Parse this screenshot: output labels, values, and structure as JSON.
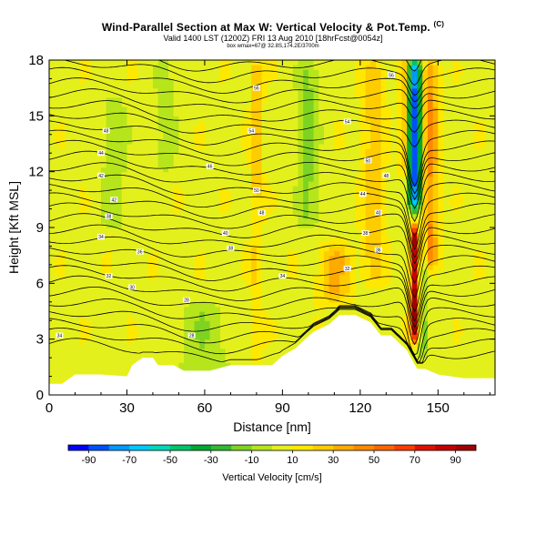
{
  "header": {
    "title": "Wind-Parallel Section at Max W: Vertical Velocity & Pot.Temp.",
    "title_mark": "(C)",
    "subtitle": "Valid 1400 LST (1200Z) FRI 13 Aug 2010 [18hrFcst@0054z]",
    "subtitle2": "box wmax=67@ 32.8S,174.2E/3700m"
  },
  "chart_data": {
    "type": "heatmap",
    "xlabel": "Distance [nm]",
    "ylabel": "Height [Kft MSL]",
    "xlim": [
      0,
      172
    ],
    "ylim": [
      0,
      18
    ],
    "x_ticks": [
      "0",
      "30",
      "60",
      "90",
      "120",
      "150"
    ],
    "x_tick_values": [
      0,
      30,
      60,
      90,
      120,
      150
    ],
    "y_ticks": [
      "0",
      "3",
      "6",
      "9",
      "12",
      "15",
      "18"
    ],
    "y_tick_values": [
      0,
      3,
      6,
      9,
      12,
      15,
      18
    ],
    "terrain": [
      [
        0,
        0.6
      ],
      [
        5,
        0.6
      ],
      [
        10,
        1.1
      ],
      [
        20,
        1.1
      ],
      [
        30,
        1.0
      ],
      [
        32,
        1.6
      ],
      [
        36,
        2.0
      ],
      [
        40,
        2.0
      ],
      [
        42,
        1.6
      ],
      [
        48,
        1.6
      ],
      [
        52,
        1.3
      ],
      [
        62,
        1.3
      ],
      [
        70,
        1.6
      ],
      [
        80,
        1.6
      ],
      [
        86,
        1.6
      ],
      [
        90,
        2.1
      ],
      [
        95,
        2.5
      ],
      [
        98,
        2.9
      ],
      [
        102,
        3.4
      ],
      [
        108,
        3.8
      ],
      [
        112,
        4.3
      ],
      [
        118,
        4.3
      ],
      [
        124,
        3.9
      ],
      [
        128,
        3.2
      ],
      [
        132,
        3.2
      ],
      [
        138,
        2.4
      ],
      [
        140,
        1.9
      ],
      [
        142,
        1.4
      ],
      [
        145,
        1.4
      ],
      [
        150,
        1.1
      ],
      [
        160,
        0.9
      ],
      [
        172,
        0.9
      ]
    ],
    "velocity_field": {
      "background": 7,
      "features": [
        {
          "x": 141,
          "zmin": 10,
          "zmax": 18,
          "halfwidth": 2.5,
          "value": -90
        },
        {
          "x": 147,
          "zmin": 7,
          "zmax": 18,
          "halfwidth": 3,
          "value": 35
        },
        {
          "x": 137,
          "zmin": 12,
          "zmax": 18,
          "halfwidth": 2,
          "value": 25
        },
        {
          "x": 141,
          "zmin": 3,
          "zmax": 9,
          "halfwidth": 1.8,
          "value": 85
        },
        {
          "x": 144,
          "zmin": 2,
          "zmax": 9,
          "halfwidth": 1.5,
          "value": -25
        },
        {
          "x": 80,
          "zmin": 11,
          "zmax": 18,
          "halfwidth": 2,
          "value": 25
        },
        {
          "x": 80,
          "zmin": 2,
          "zmax": 11,
          "halfwidth": 2,
          "value": 15
        },
        {
          "x": 110,
          "zmin": 5,
          "zmax": 8,
          "halfwidth": 6,
          "value": 25
        },
        {
          "x": 125,
          "zmin": 6,
          "zmax": 18,
          "halfwidth": 4,
          "value": 20
        },
        {
          "x": 100,
          "zmin": 9,
          "zmax": 18,
          "halfwidth": 4,
          "value": -20
        },
        {
          "x": 60,
          "zmin": 0,
          "zmax": 5,
          "halfwidth": 10,
          "value": -15
        },
        {
          "x": 25,
          "zmin": 9,
          "zmax": 16,
          "halfwidth": 5,
          "value": -14
        },
        {
          "x": 45,
          "zmin": 12,
          "zmax": 18,
          "halfwidth": 4,
          "value": -12
        }
      ]
    },
    "isentropes": {
      "count": 30,
      "labels": [
        {
          "x": 4,
          "y": 3.2,
          "text": "34"
        },
        {
          "x": 22,
          "y": 14.2,
          "text": "48"
        },
        {
          "x": 20,
          "y": 13.0,
          "text": "44"
        },
        {
          "x": 20,
          "y": 11.8,
          "text": "42"
        },
        {
          "x": 25,
          "y": 10.5,
          "text": "42"
        },
        {
          "x": 23,
          "y": 9.6,
          "text": "38"
        },
        {
          "x": 20,
          "y": 8.5,
          "text": "34"
        },
        {
          "x": 35,
          "y": 7.7,
          "text": "36"
        },
        {
          "x": 23,
          "y": 6.4,
          "text": "32"
        },
        {
          "x": 32,
          "y": 5.8,
          "text": "30"
        },
        {
          "x": 53,
          "y": 5.1,
          "text": "28"
        },
        {
          "x": 55,
          "y": 3.2,
          "text": "28"
        },
        {
          "x": 80,
          "y": 16.5,
          "text": "56"
        },
        {
          "x": 78,
          "y": 14.2,
          "text": "54"
        },
        {
          "x": 62,
          "y": 12.3,
          "text": "46"
        },
        {
          "x": 80,
          "y": 11.0,
          "text": "50"
        },
        {
          "x": 82,
          "y": 9.8,
          "text": "48"
        },
        {
          "x": 68,
          "y": 8.7,
          "text": "40"
        },
        {
          "x": 70,
          "y": 7.9,
          "text": "38"
        },
        {
          "x": 90,
          "y": 6.4,
          "text": "34"
        },
        {
          "x": 132,
          "y": 17.2,
          "text": "56"
        },
        {
          "x": 115,
          "y": 14.7,
          "text": "54"
        },
        {
          "x": 123,
          "y": 12.6,
          "text": "50"
        },
        {
          "x": 130,
          "y": 11.8,
          "text": "48"
        },
        {
          "x": 121,
          "y": 10.8,
          "text": "44"
        },
        {
          "x": 127,
          "y": 9.8,
          "text": "40"
        },
        {
          "x": 122,
          "y": 8.7,
          "text": "38"
        },
        {
          "x": 127,
          "y": 7.8,
          "text": "36"
        },
        {
          "x": 115,
          "y": 6.8,
          "text": "32"
        }
      ]
    },
    "colorbar": {
      "min": -100,
      "max": 100,
      "tick_labels": [
        "-90",
        "-70",
        "-50",
        "-30",
        "-10",
        "10",
        "30",
        "50",
        "70",
        "90"
      ],
      "tick_values": [
        -90,
        -70,
        -50,
        -30,
        -10,
        10,
        30,
        50,
        70,
        90
      ],
      "label": "Vertical Velocity [cm/s]",
      "colors": [
        "#0000ff",
        "#0050ff",
        "#0099ff",
        "#00c8ff",
        "#00d9b9",
        "#00c46a",
        "#00a830",
        "#33b830",
        "#7ed321",
        "#b6e51c",
        "#e4f01c",
        "#ffe800",
        "#ffcc00",
        "#ffaa00",
        "#ff8800",
        "#ff6600",
        "#ff3c00",
        "#e01000",
        "#c40000",
        "#a00000"
      ]
    }
  }
}
